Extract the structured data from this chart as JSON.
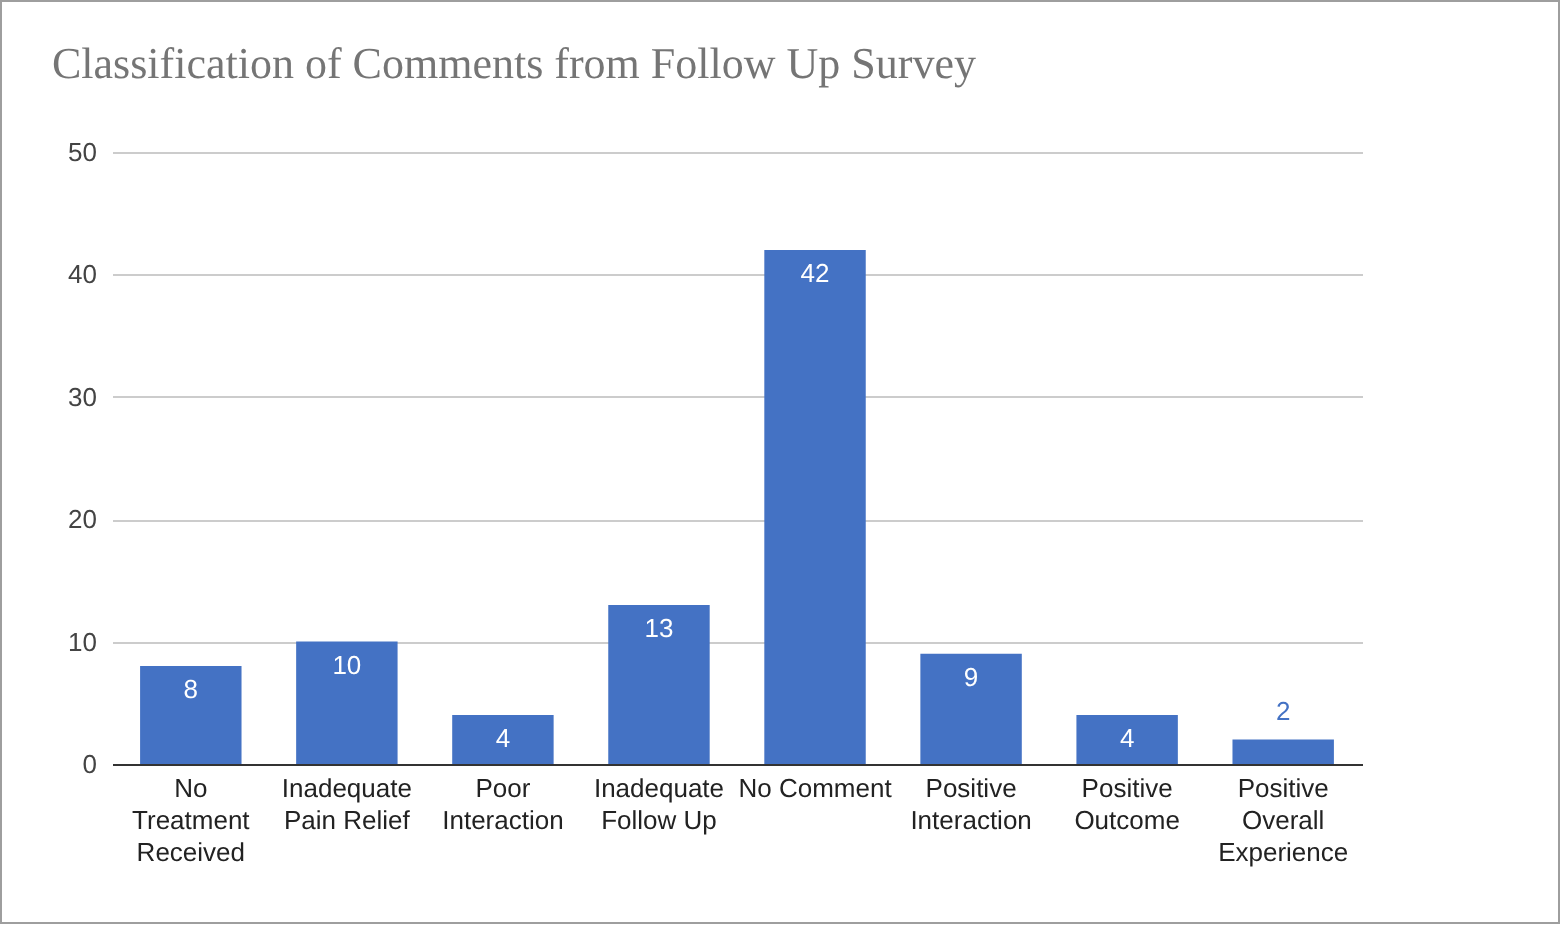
{
  "chart_data": {
    "type": "bar",
    "title": "Classification of Comments from Follow Up Survey",
    "categories": [
      "No Treatment Received",
      "Inadequate Pain Relief",
      "Poor Interaction",
      "Inadequate Follow Up",
      "No Comment",
      "Positive Interaction",
      "Positive Outcome",
      "Positive Overall Experience"
    ],
    "values": [
      8,
      10,
      4,
      13,
      42,
      9,
      4,
      2
    ],
    "color": "#4472c4",
    "ylim": [
      0,
      50
    ],
    "yticks": [
      0,
      10,
      20,
      30,
      40,
      50
    ],
    "grid": true,
    "data_labels": true
  }
}
